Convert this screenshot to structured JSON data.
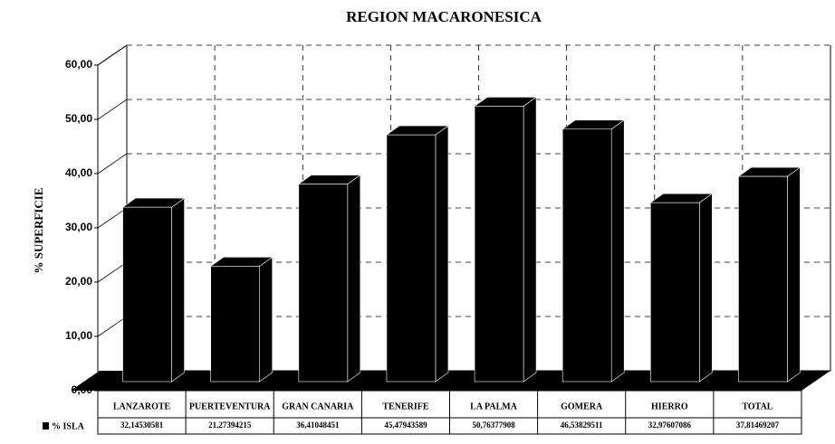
{
  "chart_data": {
    "type": "bar3d",
    "title": "REGION MACARONESICA",
    "y_label": "% SUPERFICIE",
    "categories": [
      "LANZAROTE",
      "PUERTEVENTURA",
      "GRAN CANARIA",
      "TENERIFE",
      "LA PALMA",
      "GOMERA",
      "HIERRO",
      "TOTAL"
    ],
    "series": [
      {
        "name": "% ISLA",
        "color": "#000000",
        "values": [
          32.14530581,
          21.27394215,
          36.41048451,
          45.47943589,
          50.76377908,
          46.53829511,
          32.97607086,
          37.81469207
        ],
        "value_labels": [
          "32,14530581",
          "21,27394215",
          "36,41048451",
          "45,47943589",
          "50,76377908",
          "46,53829511",
          "32,97607086",
          "37,81469207"
        ]
      }
    ],
    "ylim": [
      0,
      60
    ],
    "yticks": [
      {
        "value": 0,
        "label": "0,00"
      },
      {
        "value": 10,
        "label": "10,00"
      },
      {
        "value": 20,
        "label": "20,00"
      },
      {
        "value": 30,
        "label": "30,00"
      },
      {
        "value": 40,
        "label": "40,00"
      },
      {
        "value": 50,
        "label": "50,00"
      },
      {
        "value": 60,
        "label": "60,00"
      }
    ],
    "grid": true
  }
}
